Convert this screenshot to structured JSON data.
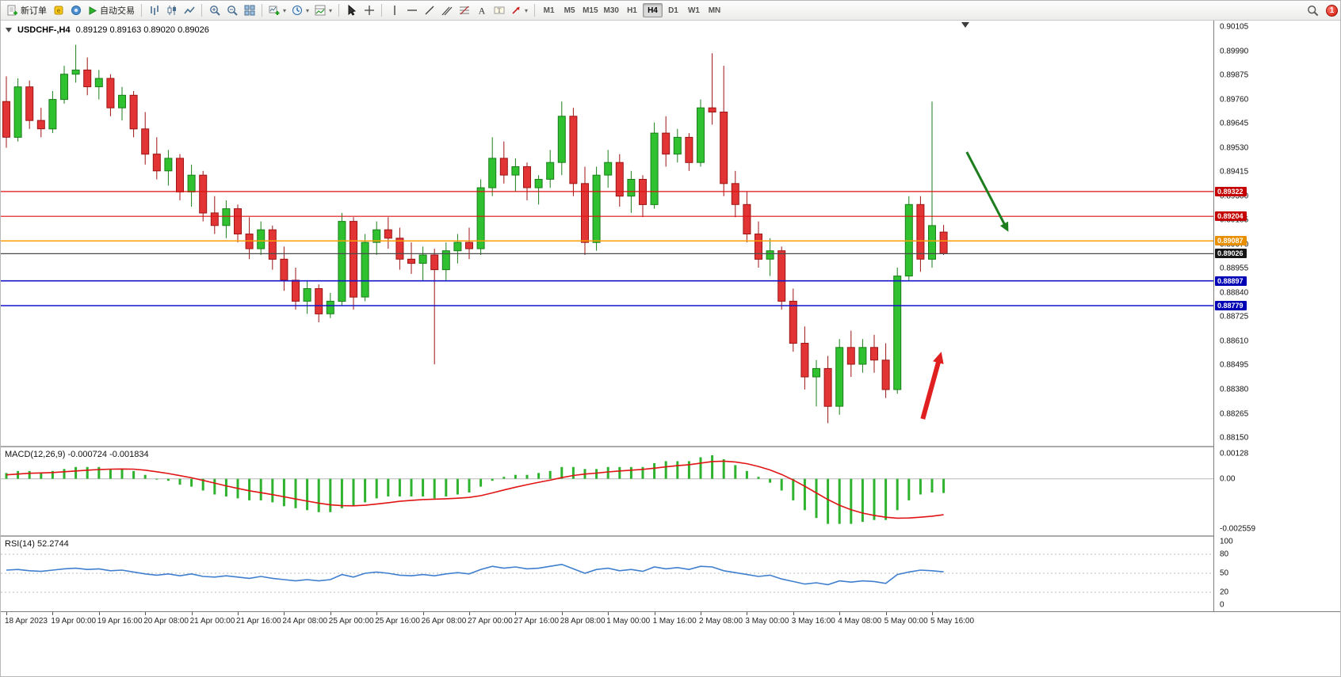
{
  "toolbar": {
    "new_order_label": "新订单",
    "auto_trading_label": "自动交易",
    "timeframes": [
      "M1",
      "M5",
      "M15",
      "M30",
      "H1",
      "H4",
      "D1",
      "W1",
      "MN"
    ],
    "active_timeframe": "H4",
    "notification_count": "1"
  },
  "chart": {
    "symbol_label": "USDCHF-,H4",
    "ohlc_label": "0.89129 0.89163 0.89020 0.89026",
    "price_max": 0.90105,
    "price_min": 0.8815,
    "price_axis": [
      "0.90105",
      "0.89990",
      "0.89875",
      "0.89760",
      "0.89645",
      "0.89530",
      "0.89415",
      "0.89300",
      "0.89185",
      "0.89070",
      "0.88955",
      "0.88840",
      "0.88725",
      "0.88610",
      "0.88495",
      "0.88380",
      "0.88265",
      "0.88150"
    ],
    "colors": {
      "up": "#2fc12f",
      "up_border": "#1b7e1b",
      "down": "#e23434",
      "down_border": "#9c1414",
      "macd_hist": "#2fb32f",
      "macd_signal": "#e01414",
      "rsi_line": "#3f7fce"
    },
    "hlines": [
      {
        "price": 0.89322,
        "label": "0.89322",
        "color": "#dd1111",
        "tag_bg": "#c40000",
        "width": 1.2
      },
      {
        "price": 0.89204,
        "label": "0.89204",
        "color": "#dd1111",
        "tag_bg": "#c40000",
        "width": 1.2
      },
      {
        "price": 0.89087,
        "label": "0.89087",
        "color": "#ff9d00",
        "tag_bg": "#e88f00",
        "width": 1.5
      },
      {
        "price": 0.89026,
        "label": "0.89026",
        "color": "#4a4a4a",
        "tag_bg": "#161616",
        "width": 1.2
      },
      {
        "price": 0.88897,
        "label": "0.88897",
        "color": "#1414cc",
        "tag_bg": "#0000b4",
        "width": 1.6
      },
      {
        "price": 0.88779,
        "label": "0.88779",
        "color": "#1414cc",
        "tag_bg": "#0000b4",
        "width": 1.6
      }
    ],
    "arrows": [
      {
        "name": "down-trend-arrow",
        "color": "#1e7d1e",
        "from_bar": 83.0,
        "from_price": 0.8951,
        "to_bar": 86.6,
        "to_price": 0.8913,
        "width": 3,
        "head": 13
      },
      {
        "name": "up-reversal-arrow",
        "color": "#e02020",
        "from_bar": 79.2,
        "from_price": 0.8824,
        "to_bar": 80.8,
        "to_price": 0.8856,
        "width": 6,
        "head": 16
      }
    ],
    "time_axis": [
      "18 Apr 2023",
      "19 Apr 00:00",
      "19 Apr 16:00",
      "20 Apr 08:00",
      "21 Apr 00:00",
      "21 Apr 16:00",
      "24 Apr 08:00",
      "25 Apr 00:00",
      "25 Apr 16:00",
      "26 Apr 08:00",
      "27 Apr 00:00",
      "27 Apr 16:00",
      "28 Apr 08:00",
      "1 May 00:00",
      "1 May 16:00",
      "2 May 08:00",
      "3 May 00:00",
      "3 May 16:00",
      "4 May 08:00",
      "5 May 00:00",
      "5 May 16:00"
    ],
    "label_every": 4,
    "candles": [
      [
        0.8975,
        0.8987,
        0.8953,
        0.8958
      ],
      [
        0.8958,
        0.8986,
        0.8956,
        0.8982
      ],
      [
        0.8982,
        0.8985,
        0.8962,
        0.8966
      ],
      [
        0.8966,
        0.8972,
        0.8958,
        0.8962
      ],
      [
        0.8962,
        0.898,
        0.896,
        0.8976
      ],
      [
        0.8976,
        0.8992,
        0.8974,
        0.8988
      ],
      [
        0.8988,
        0.9002,
        0.8984,
        0.899
      ],
      [
        0.899,
        0.8996,
        0.8978,
        0.8982
      ],
      [
        0.8982,
        0.899,
        0.8976,
        0.8986
      ],
      [
        0.8986,
        0.8988,
        0.8968,
        0.8972
      ],
      [
        0.8972,
        0.8982,
        0.8966,
        0.8978
      ],
      [
        0.8978,
        0.898,
        0.8958,
        0.8962
      ],
      [
        0.8962,
        0.897,
        0.8945,
        0.895
      ],
      [
        0.895,
        0.8958,
        0.8938,
        0.8942
      ],
      [
        0.8942,
        0.8952,
        0.8935,
        0.8948
      ],
      [
        0.8948,
        0.895,
        0.8928,
        0.8932
      ],
      [
        0.8932,
        0.8945,
        0.8925,
        0.894
      ],
      [
        0.894,
        0.8942,
        0.8918,
        0.8922
      ],
      [
        0.8922,
        0.893,
        0.8912,
        0.8916
      ],
      [
        0.8916,
        0.8928,
        0.891,
        0.8924
      ],
      [
        0.8924,
        0.8926,
        0.8908,
        0.8912
      ],
      [
        0.8912,
        0.892,
        0.89,
        0.8905
      ],
      [
        0.8905,
        0.8918,
        0.8902,
        0.8914
      ],
      [
        0.8914,
        0.8916,
        0.8895,
        0.89
      ],
      [
        0.89,
        0.8906,
        0.8885,
        0.889
      ],
      [
        0.889,
        0.8896,
        0.8876,
        0.888
      ],
      [
        0.888,
        0.889,
        0.8874,
        0.8886
      ],
      [
        0.8886,
        0.8888,
        0.887,
        0.8874
      ],
      [
        0.8874,
        0.8884,
        0.8872,
        0.888
      ],
      [
        0.888,
        0.8922,
        0.8878,
        0.8918
      ],
      [
        0.8918,
        0.892,
        0.8876,
        0.8882
      ],
      [
        0.8882,
        0.8912,
        0.888,
        0.8908
      ],
      [
        0.8908,
        0.8918,
        0.8902,
        0.8914
      ],
      [
        0.8914,
        0.892,
        0.8905,
        0.891
      ],
      [
        0.891,
        0.8915,
        0.8895,
        0.89
      ],
      [
        0.89,
        0.8908,
        0.8893,
        0.8898
      ],
      [
        0.8898,
        0.8906,
        0.889,
        0.8902
      ],
      [
        0.8902,
        0.8905,
        0.885,
        0.8895
      ],
      [
        0.8895,
        0.8908,
        0.889,
        0.8904
      ],
      [
        0.8904,
        0.8912,
        0.8898,
        0.8908
      ],
      [
        0.8908,
        0.8915,
        0.89,
        0.8905
      ],
      [
        0.8905,
        0.8938,
        0.8902,
        0.8934
      ],
      [
        0.8934,
        0.8958,
        0.893,
        0.8948
      ],
      [
        0.8948,
        0.8956,
        0.8936,
        0.894
      ],
      [
        0.894,
        0.8948,
        0.8932,
        0.8944
      ],
      [
        0.8944,
        0.8946,
        0.8928,
        0.8934
      ],
      [
        0.8934,
        0.894,
        0.8926,
        0.8938
      ],
      [
        0.8938,
        0.8952,
        0.8934,
        0.8946
      ],
      [
        0.8946,
        0.8975,
        0.894,
        0.8968
      ],
      [
        0.8968,
        0.8972,
        0.893,
        0.8936
      ],
      [
        0.8936,
        0.8944,
        0.8902,
        0.8908
      ],
      [
        0.8908,
        0.8944,
        0.8904,
        0.894
      ],
      [
        0.894,
        0.8952,
        0.8934,
        0.8946
      ],
      [
        0.8946,
        0.895,
        0.8925,
        0.893
      ],
      [
        0.893,
        0.8942,
        0.8922,
        0.8938
      ],
      [
        0.8938,
        0.894,
        0.892,
        0.8926
      ],
      [
        0.8926,
        0.8965,
        0.8924,
        0.896
      ],
      [
        0.896,
        0.8968,
        0.8944,
        0.895
      ],
      [
        0.895,
        0.8962,
        0.8946,
        0.8958
      ],
      [
        0.8958,
        0.896,
        0.8942,
        0.8946
      ],
      [
        0.8946,
        0.8976,
        0.8944,
        0.8972
      ],
      [
        0.8972,
        0.8998,
        0.8964,
        0.897
      ],
      [
        0.897,
        0.8992,
        0.893,
        0.8936
      ],
      [
        0.8936,
        0.8942,
        0.892,
        0.8926
      ],
      [
        0.8926,
        0.8932,
        0.8908,
        0.8912
      ],
      [
        0.8912,
        0.8918,
        0.8896,
        0.89
      ],
      [
        0.89,
        0.891,
        0.8892,
        0.8904
      ],
      [
        0.8904,
        0.8906,
        0.8876,
        0.888
      ],
      [
        0.888,
        0.8886,
        0.8856,
        0.886
      ],
      [
        0.886,
        0.8868,
        0.8838,
        0.8844
      ],
      [
        0.8844,
        0.8852,
        0.883,
        0.8848
      ],
      [
        0.8848,
        0.8854,
        0.8822,
        0.883
      ],
      [
        0.883,
        0.8862,
        0.8826,
        0.8858
      ],
      [
        0.8858,
        0.8866,
        0.8844,
        0.885
      ],
      [
        0.885,
        0.8862,
        0.8846,
        0.8858
      ],
      [
        0.8858,
        0.8864,
        0.8846,
        0.8852
      ],
      [
        0.8852,
        0.886,
        0.8834,
        0.8838
      ],
      [
        0.8838,
        0.8896,
        0.8836,
        0.8892
      ],
      [
        0.8892,
        0.893,
        0.889,
        0.8926
      ],
      [
        0.8926,
        0.893,
        0.8894,
        0.89
      ],
      [
        0.89,
        0.8975,
        0.8896,
        0.8916
      ],
      [
        0.89129,
        0.89163,
        0.8902,
        0.89026
      ]
    ]
  },
  "macd": {
    "label": "MACD(12,26,9) -0.000724 -0.001834",
    "axis": [
      "0.00128",
      "0.00",
      "-0.002559"
    ],
    "max": 0.00128,
    "min": -0.002559,
    "histogram": [
      0.0003,
      0.0004,
      0.0004,
      0.0003,
      0.0004,
      0.0005,
      0.0006,
      0.0006,
      0.0006,
      0.0005,
      0.0005,
      0.0004,
      0.0002,
      0.0,
      -0.0001,
      -0.0003,
      -0.0004,
      -0.0006,
      -0.0008,
      -0.0009,
      -0.001,
      -0.0011,
      -0.0011,
      -0.0012,
      -0.0014,
      -0.0015,
      -0.0016,
      -0.0017,
      -0.0017,
      -0.0015,
      -0.0014,
      -0.0012,
      -0.001,
      -0.0009,
      -0.0009,
      -0.0009,
      -0.0009,
      -0.001,
      -0.0009,
      -0.0008,
      -0.0007,
      -0.0004,
      -0.0001,
      0.0001,
      0.0002,
      0.0002,
      0.0003,
      0.0004,
      0.0006,
      0.0006,
      0.0005,
      0.0005,
      0.0006,
      0.0006,
      0.0006,
      0.0006,
      0.0008,
      0.0009,
      0.0009,
      0.0009,
      0.0011,
      0.0012,
      0.001,
      0.0007,
      0.0004,
      0.0001,
      -0.0002,
      -0.0006,
      -0.0011,
      -0.0016,
      -0.002,
      -0.0023,
      -0.0023,
      -0.0023,
      -0.0022,
      -0.0021,
      -0.0021,
      -0.0016,
      -0.0011,
      -0.0008,
      -0.0007,
      -0.000724
    ],
    "signal": [
      0.0002,
      0.00024,
      0.00028,
      0.0003,
      0.00032,
      0.00036,
      0.0004,
      0.00044,
      0.00047,
      0.00049,
      0.0005,
      0.00049,
      0.00044,
      0.00036,
      0.00027,
      0.00016,
      5e-05,
      -8e-05,
      -0.00022,
      -0.00036,
      -0.00049,
      -0.00061,
      -0.00071,
      -0.00081,
      -0.00092,
      -0.00103,
      -0.00114,
      -0.00124,
      -0.00133,
      -0.00137,
      -0.00138,
      -0.00135,
      -0.00129,
      -0.00122,
      -0.00115,
      -0.0011,
      -0.00106,
      -0.00104,
      -0.00102,
      -0.00099,
      -0.00095,
      -0.00086,
      -0.00072,
      -0.00057,
      -0.00043,
      -0.0003,
      -0.00018,
      -7e-05,
      6e-05,
      0.00017,
      0.00024,
      0.00029,
      0.00035,
      0.0004,
      0.00044,
      0.00048,
      0.00054,
      0.00061,
      0.00067,
      0.00072,
      0.0008,
      0.00088,
      0.0009,
      0.00086,
      0.00077,
      0.00063,
      0.00045,
      0.00022,
      -6e-05,
      -0.00038,
      -0.00072,
      -0.00106,
      -0.00135,
      -0.00158,
      -0.00175,
      -0.00187,
      -0.00196,
      -0.00201,
      -0.002,
      -0.00196,
      -0.00191,
      -0.001834
    ]
  },
  "rsi": {
    "label": "RSI(14) 52.2744",
    "axis": [
      "100",
      "80",
      "50",
      "20",
      "0"
    ],
    "levels": [
      80,
      50,
      20
    ],
    "values": [
      55,
      56,
      54,
      53,
      55,
      57,
      58,
      56,
      57,
      54,
      55,
      52,
      49,
      47,
      49,
      46,
      49,
      45,
      44,
      46,
      44,
      42,
      45,
      42,
      40,
      38,
      40,
      38,
      40,
      48,
      44,
      50,
      52,
      50,
      47,
      46,
      48,
      46,
      49,
      51,
      49,
      56,
      61,
      58,
      60,
      57,
      58,
      61,
      64,
      57,
      50,
      56,
      58,
      54,
      56,
      53,
      60,
      57,
      59,
      56,
      61,
      60,
      54,
      51,
      48,
      45,
      47,
      41,
      37,
      33,
      35,
      32,
      38,
      36,
      38,
      37,
      34,
      48,
      52,
      55,
      54,
      52.2744
    ]
  }
}
